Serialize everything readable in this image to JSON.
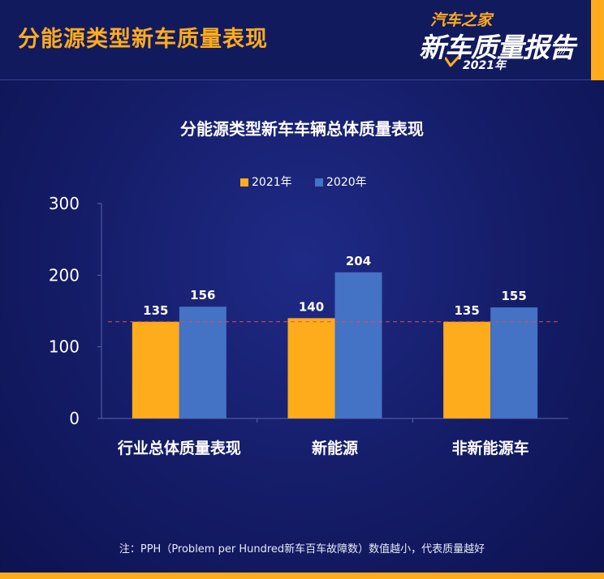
{
  "header": {
    "title": "分能源类型新车质量表现",
    "logo": {
      "brand": "汽车之家",
      "title": "新车质量报告",
      "year": "2021年"
    }
  },
  "colors": {
    "background": "#141c66",
    "accent": "#ffac1c",
    "series_2021": "#ffac1c",
    "series_2020": "#4472c4",
    "reference_line": "#e0504a"
  },
  "legend": {
    "items": [
      {
        "label": "2021年",
        "color": "#ffac1c"
      },
      {
        "label": "2020年",
        "color": "#4472c4"
      }
    ]
  },
  "chart_data": {
    "type": "bar",
    "title": "分能源类型新车车辆总体质量表现",
    "xlabel": "",
    "ylabel": "",
    "categories": [
      "行业总体质量表现",
      "新能源",
      "非新能源车"
    ],
    "series": [
      {
        "name": "2021年",
        "values": [
          135,
          140,
          135
        ],
        "color": "#ffac1c"
      },
      {
        "name": "2020年",
        "values": [
          156,
          204,
          155
        ],
        "color": "#4472c4"
      }
    ],
    "ylim": [
      0,
      300
    ],
    "yticks": [
      0,
      100,
      200,
      300
    ],
    "reference_line": {
      "value": 135,
      "style": "dashed"
    },
    "grid": false,
    "legend_position": "top-center"
  },
  "footnote": "注：PPH（Problem per Hundred新车百车故障数）数值越小，代表质量越好"
}
